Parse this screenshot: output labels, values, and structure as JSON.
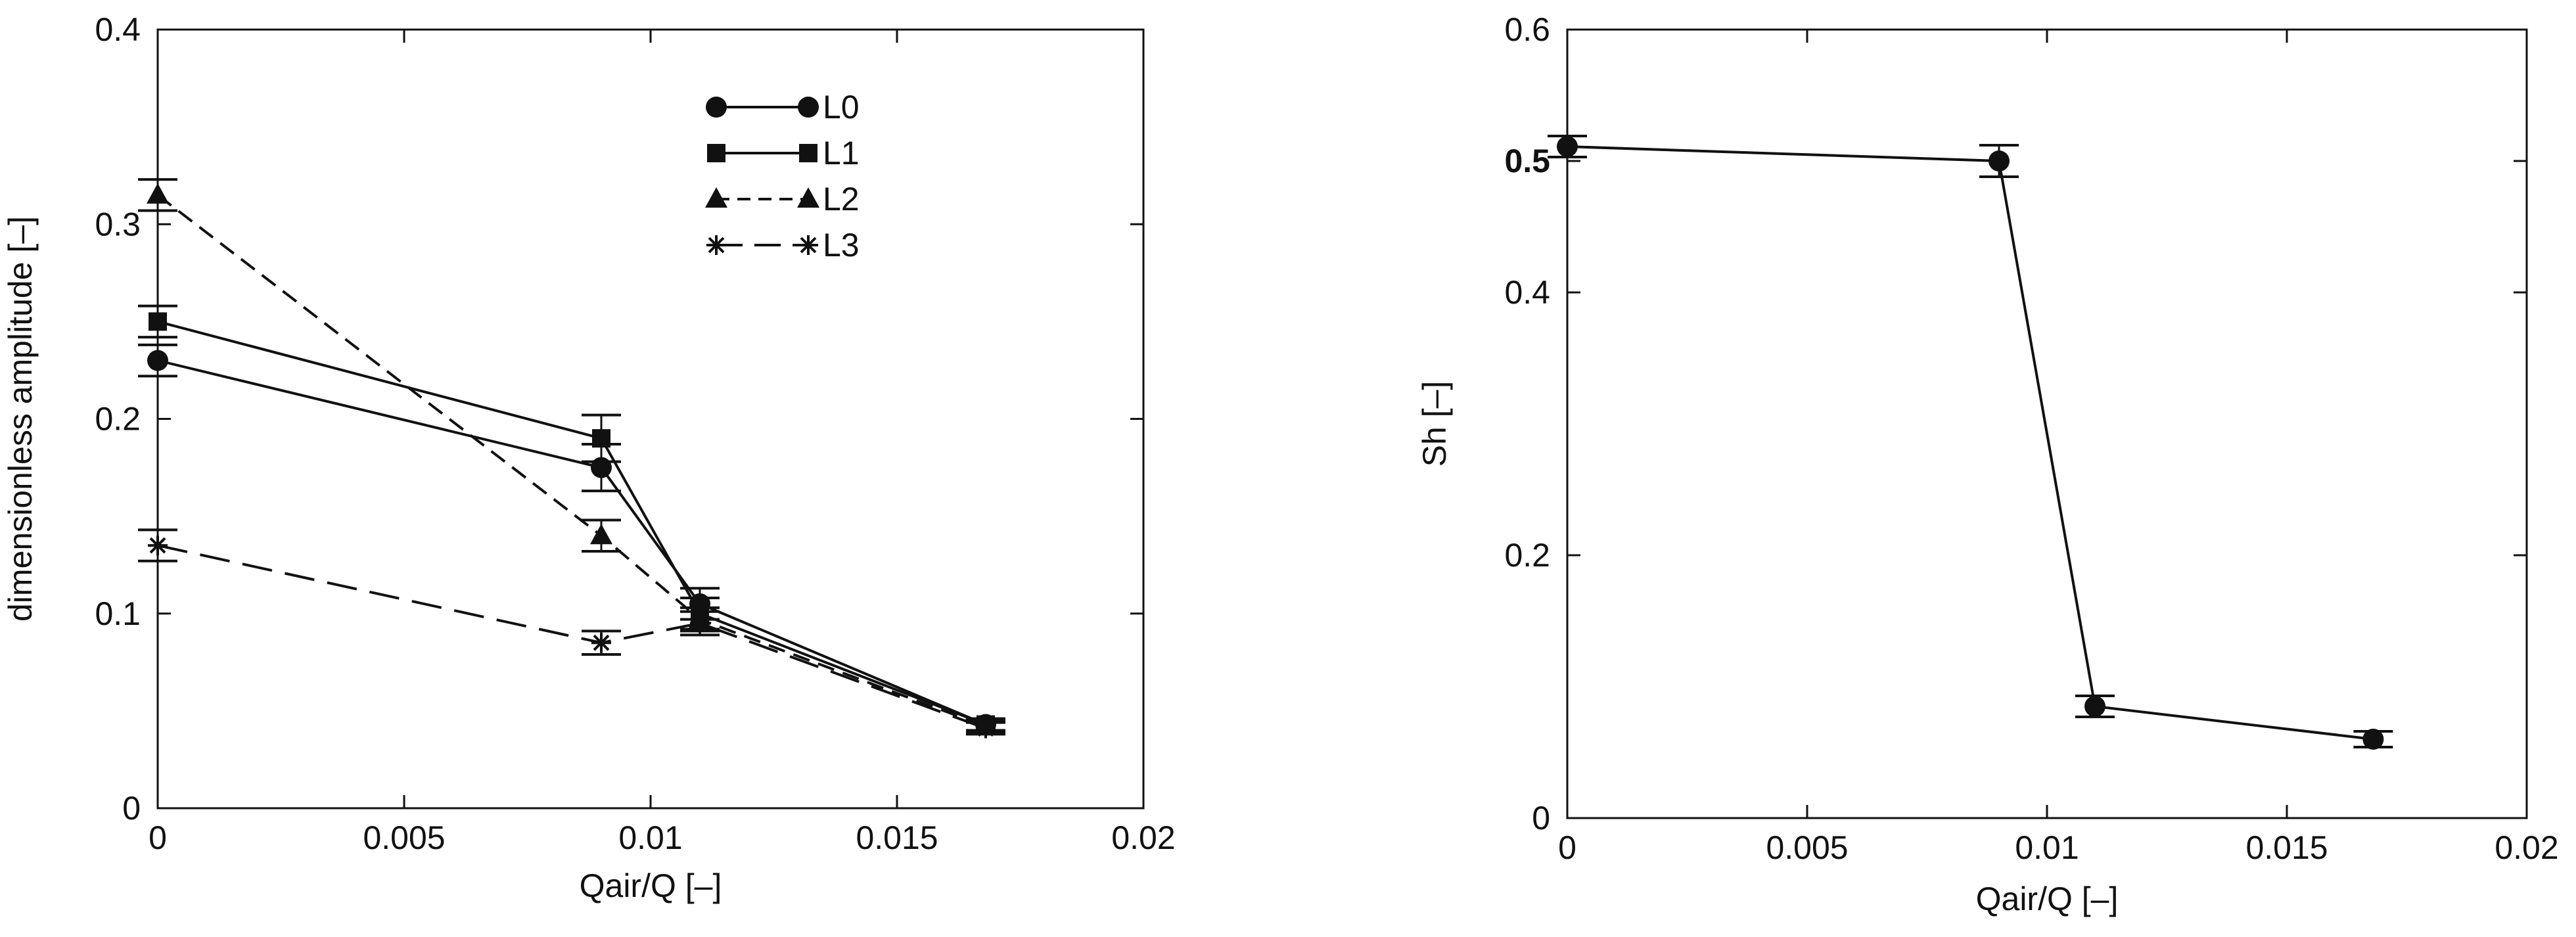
{
  "chart_data": [
    {
      "type": "line",
      "title": "",
      "xlabel": "Qair/Q [–]",
      "ylabel": "dimensionless amplitude [–]",
      "xlim": [
        0,
        0.02
      ],
      "ylim": [
        0,
        0.4
      ],
      "xticks": [
        0,
        0.005,
        0.01,
        0.015,
        0.02
      ],
      "xtick_labels": [
        "0",
        "0.005",
        "0.01",
        "0.015",
        "0.02"
      ],
      "yticks": [
        0,
        0.1,
        0.2,
        0.3,
        0.4
      ],
      "ytick_labels": [
        "0",
        "0.1",
        "0.2",
        "0.3",
        "0.4"
      ],
      "grid": false,
      "legend": "top-center",
      "error_bars": true,
      "series": [
        {
          "name": "L0",
          "marker": "circle",
          "dash": "solid",
          "x": [
            0,
            0.009,
            0.011,
            0.0168
          ],
          "y": [
            0.23,
            0.175,
            0.105,
            0.043
          ],
          "err": [
            0.008,
            0.012,
            0.008,
            0.003
          ]
        },
        {
          "name": "L1",
          "marker": "square",
          "dash": "solid",
          "x": [
            0,
            0.009,
            0.011,
            0.0168
          ],
          "y": [
            0.25,
            0.19,
            0.1,
            0.043
          ],
          "err": [
            0.008,
            0.012,
            0.008,
            0.003
          ]
        },
        {
          "name": "L2",
          "marker": "triangle",
          "dash": "short-dash",
          "x": [
            0,
            0.009,
            0.011,
            0.0168
          ],
          "y": [
            0.315,
            0.14,
            0.097,
            0.042
          ],
          "err": [
            0.008,
            0.008,
            0.006,
            0.003
          ]
        },
        {
          "name": "L3",
          "marker": "star",
          "dash": "long-dash",
          "x": [
            0,
            0.009,
            0.011,
            0.0168
          ],
          "y": [
            0.135,
            0.085,
            0.095,
            0.041
          ],
          "err": [
            0.008,
            0.006,
            0.006,
            0.003
          ]
        }
      ]
    },
    {
      "type": "line",
      "title": "",
      "xlabel": "Qair/Q [–]",
      "ylabel": "Sh [–]",
      "xlim": [
        0,
        0.02
      ],
      "ylim": [
        0,
        0.6
      ],
      "xticks": [
        0,
        0.005,
        0.01,
        0.015,
        0.02
      ],
      "xtick_labels": [
        "0",
        "0.005",
        "0.01",
        "0.015",
        "0.02"
      ],
      "yticks": [
        0,
        0.2,
        0.4,
        0.5,
        0.6
      ],
      "ytick_labels": [
        "0",
        "0.2",
        "0.4",
        "0.5",
        "0.6"
      ],
      "bold_yticks": [
        "0.5"
      ],
      "grid": false,
      "legend": "none",
      "error_bars": true,
      "series": [
        {
          "marker": "circle",
          "dash": "solid",
          "x": [
            0,
            0.009,
            0.011,
            0.0168
          ],
          "y": [
            0.511,
            0.5,
            0.085,
            0.06
          ],
          "err": [
            0.008,
            0.012,
            0.008,
            0.006
          ]
        }
      ]
    }
  ]
}
